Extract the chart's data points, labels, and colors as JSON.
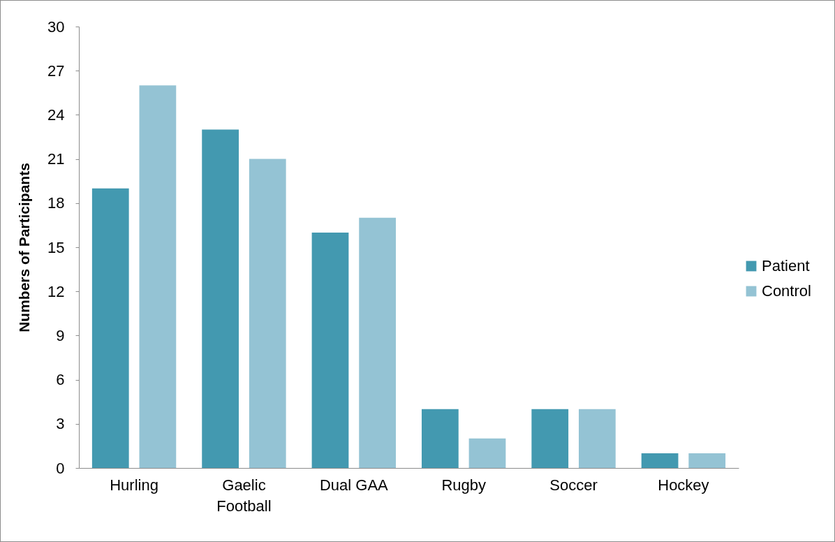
{
  "chart_data": {
    "type": "bar",
    "ylabel": "Numbers of Participants",
    "categories": [
      "Hurling",
      "Gaelic Football",
      "Dual GAA",
      "Rugby",
      "Soccer",
      "Hockey"
    ],
    "series": [
      {
        "name": "Patient",
        "color": "#4399b0",
        "values": [
          19,
          23,
          16,
          4,
          4,
          1
        ]
      },
      {
        "name": "Control",
        "color": "#94c3d4",
        "values": [
          26,
          21,
          17,
          2,
          4,
          1
        ]
      }
    ],
    "ylim": [
      0,
      30
    ],
    "yticks": [
      0,
      3,
      6,
      9,
      12,
      15,
      18,
      21,
      24,
      27,
      30
    ],
    "grid": false,
    "legend": "right"
  }
}
